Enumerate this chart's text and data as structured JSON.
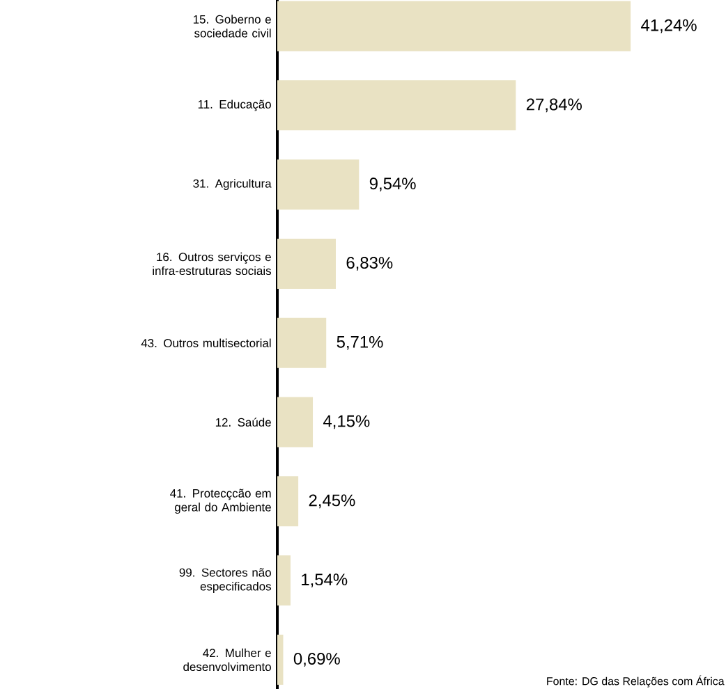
{
  "chart_data": {
    "type": "bar",
    "orientation": "horizontal",
    "color": "#e9e2c3",
    "categories": [
      "15. Goberno e sociedade civil",
      "11. Educação",
      "31. Agricultura",
      "16. Outros serviços e infra-estruturas sociais",
      "43. Outros multisectorial",
      "12. Saúde",
      "41. Protecçcão em geral do Ambiente",
      "99. Sectores não especificados",
      "42. Mulher e desenvolvimento"
    ],
    "values": [
      41.24,
      27.84,
      9.54,
      6.83,
      5.71,
      4.15,
      2.45,
      1.54,
      0.69
    ],
    "value_labels": [
      "41,24%",
      "27,84%",
      "9,54%",
      "6,83%",
      "5,71%",
      "4,15%",
      "2,45%",
      "1,54%",
      "0,69%"
    ],
    "annotations": [
      "Fonte: DG das Relações com África"
    ]
  }
}
